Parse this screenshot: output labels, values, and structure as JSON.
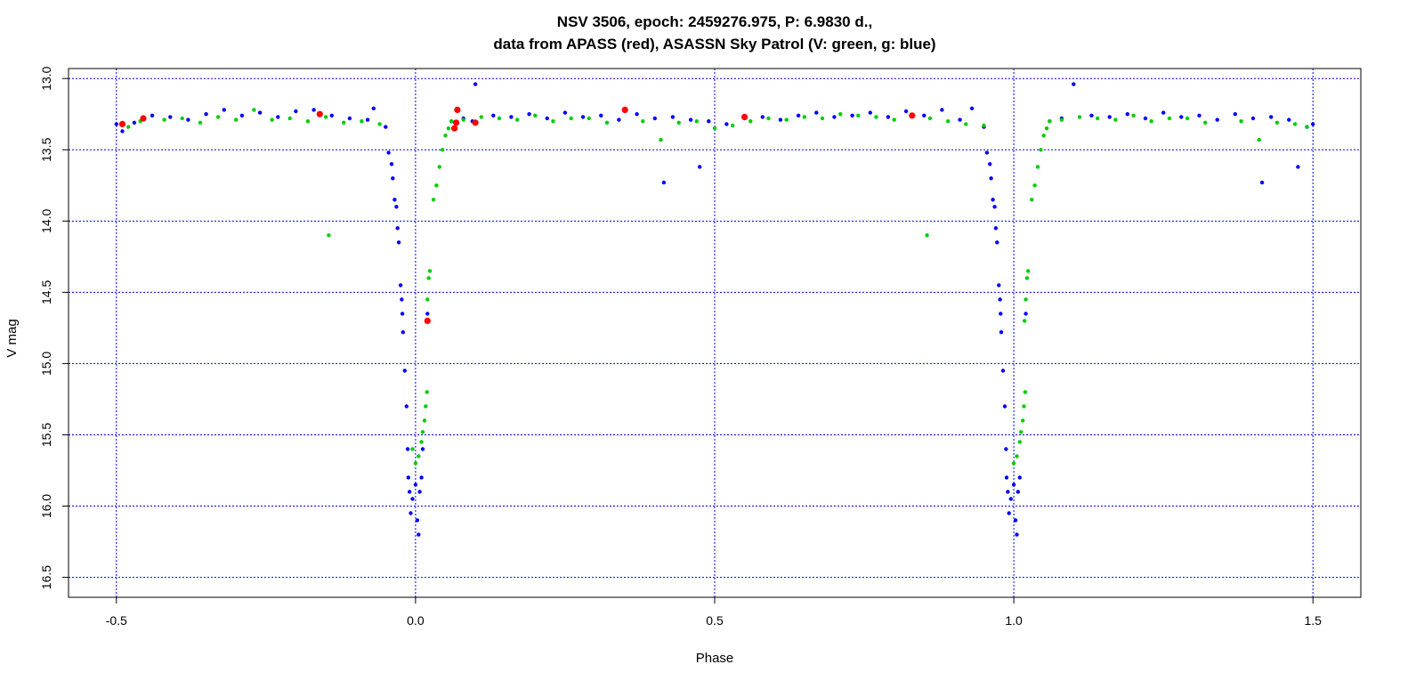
{
  "chart_data": {
    "type": "scatter",
    "title": "NSV 3506, epoch: 2459276.975, P: 6.9830 d.,",
    "subtitle": "data from APASS (red), ASASSN Sky Patrol (V: green, g: blue)",
    "xlabel": "Phase",
    "ylabel": "V mag",
    "xlim": [
      -0.58,
      1.58
    ],
    "ylim": [
      16.64,
      12.93
    ],
    "y_reversed": true,
    "grid": true,
    "grid_color": "#0000ff",
    "x_ticks": [
      -0.5,
      0.0,
      0.5,
      1.0,
      1.5
    ],
    "x_tick_labels": [
      "-0.5",
      "0.0",
      "0.5",
      "1.0",
      "1.5"
    ],
    "y_ticks": [
      13.0,
      13.5,
      14.0,
      14.5,
      15.0,
      15.5,
      16.0,
      16.5
    ],
    "y_tick_labels": [
      "13.0",
      "13.5",
      "14.0",
      "14.5",
      "15.0",
      "15.5",
      "16.0",
      "16.5"
    ],
    "series": [
      {
        "name": "APASS",
        "color": "#ff0000",
        "points": [
          [
            -0.49,
            13.32
          ],
          [
            -0.455,
            13.28
          ],
          [
            -0.16,
            13.25
          ],
          [
            0.065,
            13.35
          ],
          [
            0.07,
            13.22
          ],
          [
            0.068,
            13.31
          ],
          [
            0.1,
            13.31
          ],
          [
            0.35,
            13.22
          ],
          [
            0.55,
            13.27
          ],
          [
            0.83,
            13.26
          ],
          [
            0.02,
            14.7
          ]
        ]
      },
      {
        "name": "ASASSN V",
        "color": "#00cc00",
        "points": [
          [
            -0.48,
            13.34
          ],
          [
            -0.46,
            13.3
          ],
          [
            -0.42,
            13.29
          ],
          [
            -0.39,
            13.28
          ],
          [
            -0.36,
            13.31
          ],
          [
            -0.33,
            13.27
          ],
          [
            -0.3,
            13.29
          ],
          [
            -0.27,
            13.22
          ],
          [
            -0.24,
            13.29
          ],
          [
            -0.21,
            13.28
          ],
          [
            -0.18,
            13.3
          ],
          [
            -0.15,
            13.27
          ],
          [
            -0.12,
            13.31
          ],
          [
            -0.09,
            13.3
          ],
          [
            -0.06,
            13.32
          ],
          [
            -0.145,
            14.1
          ],
          [
            0.018,
            14.7
          ],
          [
            0.02,
            14.55
          ],
          [
            0.022,
            14.4
          ],
          [
            0.024,
            14.35
          ],
          [
            0.01,
            15.55
          ],
          [
            0.012,
            15.48
          ],
          [
            0.015,
            15.4
          ],
          [
            0.017,
            15.3
          ],
          [
            0.019,
            15.2
          ],
          [
            0.005,
            15.65
          ],
          [
            0.0,
            15.7
          ],
          [
            -0.005,
            15.6
          ],
          [
            0.03,
            13.85
          ],
          [
            0.035,
            13.75
          ],
          [
            0.04,
            13.62
          ],
          [
            0.045,
            13.5
          ],
          [
            0.05,
            13.4
          ],
          [
            0.055,
            13.35
          ],
          [
            0.06,
            13.3
          ],
          [
            0.08,
            13.29
          ],
          [
            0.11,
            13.27
          ],
          [
            0.14,
            13.28
          ],
          [
            0.17,
            13.29
          ],
          [
            0.2,
            13.26
          ],
          [
            0.23,
            13.3
          ],
          [
            0.26,
            13.28
          ],
          [
            0.29,
            13.28
          ],
          [
            0.32,
            13.31
          ],
          [
            0.38,
            13.3
          ],
          [
            0.41,
            13.43
          ],
          [
            0.44,
            13.31
          ],
          [
            0.47,
            13.3
          ],
          [
            0.5,
            13.35
          ],
          [
            0.53,
            13.33
          ],
          [
            0.56,
            13.3
          ],
          [
            0.59,
            13.28
          ],
          [
            0.62,
            13.29
          ],
          [
            0.65,
            13.27
          ],
          [
            0.68,
            13.28
          ],
          [
            0.71,
            13.25
          ],
          [
            0.74,
            13.26
          ],
          [
            0.77,
            13.27
          ],
          [
            0.8,
            13.29
          ],
          [
            0.855,
            14.1
          ],
          [
            0.86,
            13.28
          ],
          [
            0.89,
            13.3
          ],
          [
            0.92,
            13.32
          ],
          [
            0.95,
            13.33
          ],
          [
            1.018,
            14.7
          ],
          [
            1.02,
            14.55
          ],
          [
            1.022,
            14.4
          ],
          [
            1.024,
            14.35
          ],
          [
            1.01,
            15.55
          ],
          [
            1.012,
            15.48
          ],
          [
            1.015,
            15.4
          ],
          [
            1.017,
            15.3
          ],
          [
            1.019,
            15.2
          ],
          [
            1.005,
            15.65
          ],
          [
            1.0,
            15.7
          ],
          [
            1.03,
            13.85
          ],
          [
            1.035,
            13.75
          ],
          [
            1.04,
            13.62
          ],
          [
            1.045,
            13.5
          ],
          [
            1.05,
            13.4
          ],
          [
            1.055,
            13.35
          ],
          [
            1.06,
            13.3
          ],
          [
            1.08,
            13.29
          ],
          [
            1.11,
            13.27
          ],
          [
            1.14,
            13.28
          ],
          [
            1.17,
            13.29
          ],
          [
            1.2,
            13.26
          ],
          [
            1.23,
            13.3
          ],
          [
            1.26,
            13.28
          ],
          [
            1.29,
            13.28
          ],
          [
            1.32,
            13.31
          ],
          [
            1.38,
            13.3
          ],
          [
            1.41,
            13.43
          ],
          [
            1.44,
            13.31
          ],
          [
            1.47,
            13.32
          ],
          [
            1.49,
            13.34
          ]
        ]
      },
      {
        "name": "ASASSN g",
        "color": "#0000ff",
        "points": [
          [
            -0.5,
            13.32
          ],
          [
            -0.49,
            13.37
          ],
          [
            -0.47,
            13.31
          ],
          [
            -0.44,
            13.26
          ],
          [
            -0.41,
            13.27
          ],
          [
            -0.38,
            13.29
          ],
          [
            -0.35,
            13.25
          ],
          [
            -0.32,
            13.22
          ],
          [
            -0.29,
            13.26
          ],
          [
            -0.26,
            13.24
          ],
          [
            -0.23,
            13.27
          ],
          [
            -0.2,
            13.23
          ],
          [
            -0.17,
            13.22
          ],
          [
            -0.14,
            13.26
          ],
          [
            -0.11,
            13.28
          ],
          [
            -0.08,
            13.29
          ],
          [
            -0.07,
            13.21
          ],
          [
            -0.05,
            13.34
          ],
          [
            -0.045,
            13.52
          ],
          [
            -0.04,
            13.6
          ],
          [
            -0.038,
            13.7
          ],
          [
            -0.035,
            13.85
          ],
          [
            -0.032,
            13.9
          ],
          [
            -0.03,
            14.05
          ],
          [
            -0.028,
            14.15
          ],
          [
            -0.025,
            14.45
          ],
          [
            -0.023,
            14.55
          ],
          [
            -0.022,
            14.65
          ],
          [
            -0.021,
            14.78
          ],
          [
            -0.018,
            15.05
          ],
          [
            -0.015,
            15.3
          ],
          [
            -0.013,
            15.6
          ],
          [
            -0.012,
            15.8
          ],
          [
            -0.01,
            15.9
          ],
          [
            -0.008,
            16.05
          ],
          [
            -0.005,
            15.95
          ],
          [
            0.0,
            15.85
          ],
          [
            0.003,
            16.1
          ],
          [
            0.005,
            16.2
          ],
          [
            0.007,
            15.9
          ],
          [
            0.01,
            15.8
          ],
          [
            0.012,
            15.6
          ],
          [
            0.02,
            14.65
          ],
          [
            0.06,
            13.3
          ],
          [
            0.08,
            13.28
          ],
          [
            0.095,
            13.3
          ],
          [
            0.1,
            13.04
          ],
          [
            0.13,
            13.26
          ],
          [
            0.16,
            13.27
          ],
          [
            0.19,
            13.25
          ],
          [
            0.22,
            13.28
          ],
          [
            0.25,
            13.24
          ],
          [
            0.28,
            13.27
          ],
          [
            0.31,
            13.26
          ],
          [
            0.34,
            13.29
          ],
          [
            0.37,
            13.25
          ],
          [
            0.4,
            13.28
          ],
          [
            0.415,
            13.73
          ],
          [
            0.43,
            13.27
          ],
          [
            0.46,
            13.29
          ],
          [
            0.475,
            13.62
          ],
          [
            0.49,
            13.3
          ],
          [
            0.52,
            13.32
          ],
          [
            0.55,
            13.28
          ],
          [
            0.58,
            13.27
          ],
          [
            0.61,
            13.29
          ],
          [
            0.64,
            13.26
          ],
          [
            0.67,
            13.24
          ],
          [
            0.7,
            13.27
          ],
          [
            0.73,
            13.26
          ],
          [
            0.76,
            13.24
          ],
          [
            0.79,
            13.27
          ],
          [
            0.82,
            13.23
          ],
          [
            0.85,
            13.26
          ],
          [
            0.88,
            13.22
          ],
          [
            0.91,
            13.29
          ],
          [
            0.93,
            13.21
          ],
          [
            0.95,
            13.34
          ],
          [
            0.955,
            13.52
          ],
          [
            0.96,
            13.6
          ],
          [
            0.962,
            13.7
          ],
          [
            0.965,
            13.85
          ],
          [
            0.968,
            13.9
          ],
          [
            0.97,
            14.05
          ],
          [
            0.972,
            14.15
          ],
          [
            0.975,
            14.45
          ],
          [
            0.977,
            14.55
          ],
          [
            0.978,
            14.65
          ],
          [
            0.979,
            14.78
          ],
          [
            0.982,
            15.05
          ],
          [
            0.985,
            15.3
          ],
          [
            0.987,
            15.6
          ],
          [
            0.988,
            15.8
          ],
          [
            0.99,
            15.9
          ],
          [
            0.992,
            16.05
          ],
          [
            0.995,
            15.95
          ],
          [
            1.0,
            15.85
          ],
          [
            1.003,
            16.1
          ],
          [
            1.005,
            16.2
          ],
          [
            1.007,
            15.9
          ],
          [
            1.01,
            15.8
          ],
          [
            1.02,
            14.65
          ],
          [
            1.06,
            13.3
          ],
          [
            1.08,
            13.28
          ],
          [
            1.1,
            13.04
          ],
          [
            1.13,
            13.26
          ],
          [
            1.16,
            13.27
          ],
          [
            1.19,
            13.25
          ],
          [
            1.22,
            13.28
          ],
          [
            1.25,
            13.24
          ],
          [
            1.28,
            13.27
          ],
          [
            1.31,
            13.26
          ],
          [
            1.34,
            13.29
          ],
          [
            1.37,
            13.25
          ],
          [
            1.4,
            13.28
          ],
          [
            1.415,
            13.73
          ],
          [
            1.43,
            13.27
          ],
          [
            1.46,
            13.29
          ],
          [
            1.475,
            13.62
          ],
          [
            1.49,
            13.34
          ],
          [
            1.5,
            13.32
          ]
        ]
      }
    ]
  }
}
